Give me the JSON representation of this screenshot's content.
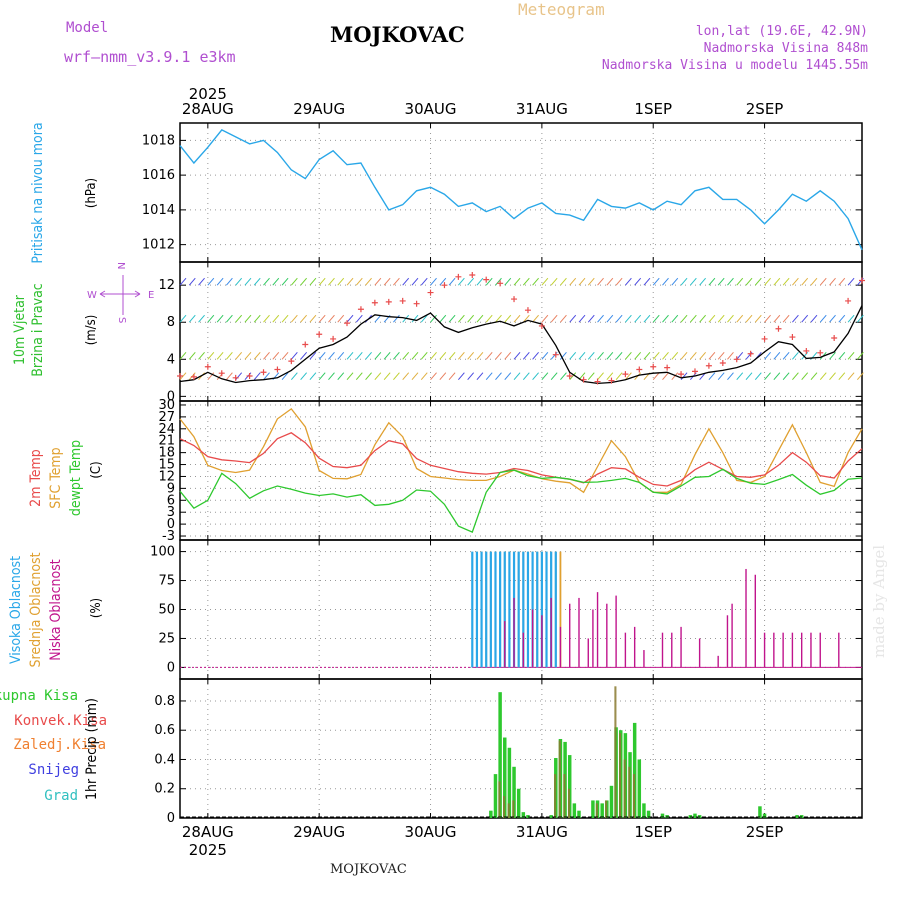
{
  "header": {
    "model_label": "Model",
    "model_name": "wrf—nmm_v3.9.1 e3km",
    "title": "MOJKOVAC",
    "meteogram": "Meteogram",
    "lonlat": "lon,lat (19.6E, 42.9N)",
    "altitude": "Nadmorska Visina 848m",
    "model_altitude": "Nadmorska Visina u modelu 1445.55m"
  },
  "footer": "MOJKOVAC",
  "credit": "made by Angel",
  "colors": {
    "pressure": "#2aa7e8",
    "temp2m": "#e84b4b",
    "sfc": "#e0a030",
    "dewpt": "#2ec82e",
    "high": "#2aa7e8",
    "mid": "#e0a030",
    "low": "#c0148c",
    "precip_total": "#2ec82e",
    "precip_conv": "#e84b4b",
    "precip_frozen": "#f08030",
    "snow": "#4040e0",
    "graupel": "#30c0c0",
    "wind_label": "#30c030",
    "compass": "#b04fd0"
  },
  "chart_data": [
    {
      "type": "line",
      "name": "pressure",
      "ylabel": "Pritisak na nivou mora",
      "unit": "(hPa)",
      "ylim": [
        1011,
        1019
      ],
      "yticks": [
        1012,
        1014,
        1016,
        1018
      ],
      "x_hours": [
        0,
        3,
        6,
        9,
        12,
        15,
        18,
        21,
        24,
        27,
        30,
        33,
        36,
        39,
        42,
        45,
        48,
        51,
        54,
        57,
        60,
        63,
        66,
        69,
        72,
        75,
        78,
        81,
        84,
        87,
        90,
        93,
        96,
        99,
        102,
        105,
        108,
        111,
        114,
        117,
        120,
        123,
        126,
        129,
        132,
        135,
        138,
        141,
        144,
        147
      ],
      "values": [
        1017.7,
        1016.7,
        1017.6,
        1018.6,
        1018.2,
        1017.8,
        1018.0,
        1017.3,
        1016.3,
        1015.8,
        1016.9,
        1017.4,
        1016.6,
        1016.7,
        1015.3,
        1014.0,
        1014.3,
        1015.1,
        1015.3,
        1014.9,
        1014.2,
        1014.4,
        1013.9,
        1014.2,
        1013.5,
        1014.1,
        1014.4,
        1013.8,
        1013.7,
        1013.4,
        1014.6,
        1014.2,
        1014.1,
        1014.4,
        1014.0,
        1014.5,
        1014.3,
        1015.1,
        1015.3,
        1014.6,
        1014.6,
        1014.0,
        1013.2,
        1014.0,
        1014.9,
        1014.5,
        1015.1,
        1014.5,
        1013.5,
        1011.7
      ]
    },
    {
      "type": "line",
      "name": "wind",
      "ylabel": "10m Vjetar Brzina i Pravac",
      "unit": "(m/s)",
      "ylim": [
        -0.5,
        14.5
      ],
      "yticks": [
        0,
        4,
        8,
        12
      ],
      "compass": {
        "n": "N",
        "s": "S",
        "w": "W",
        "e": "E"
      },
      "x_hours": [
        0,
        3,
        6,
        9,
        12,
        15,
        18,
        21,
        24,
        27,
        30,
        33,
        36,
        39,
        42,
        45,
        48,
        51,
        54,
        57,
        60,
        63,
        66,
        69,
        72,
        75,
        78,
        81,
        84,
        87,
        90,
        93,
        96,
        99,
        102,
        105,
        108,
        111,
        114,
        117,
        120,
        123,
        126,
        129,
        132,
        135,
        138,
        141,
        144,
        147
      ],
      "series": [
        {
          "name": "speed",
          "values": [
            1.6,
            1.8,
            2.6,
            1.9,
            1.5,
            1.7,
            1.8,
            2.0,
            2.8,
            4.0,
            5.2,
            5.6,
            6.4,
            7.8,
            8.8,
            8.6,
            8.5,
            8.2,
            9.0,
            7.5,
            6.9,
            7.4,
            7.8,
            8.1,
            7.6,
            8.2,
            7.8,
            5.5,
            2.6,
            1.6,
            1.4,
            1.5,
            1.8,
            2.3,
            2.5,
            2.6,
            2.0,
            2.2,
            2.6,
            2.8,
            3.1,
            3.6,
            4.8,
            5.9,
            5.6,
            4.1,
            4.2,
            4.8,
            6.8,
            9.8
          ]
        },
        {
          "name": "gust",
          "values": [
            2.2,
            2.1,
            3.2,
            2.5,
            2.0,
            2.2,
            2.6,
            2.9,
            3.8,
            5.6,
            6.7,
            6.2,
            7.9,
            9.4,
            10.1,
            10.2,
            10.3,
            10.0,
            11.2,
            12.0,
            12.9,
            13.1,
            12.6,
            12.2,
            10.5,
            9.3,
            7.6,
            4.5,
            2.2,
            1.8,
            1.6,
            1.7,
            2.4,
            2.9,
            3.2,
            3.1,
            2.4,
            2.7,
            3.3,
            3.6,
            4.0,
            4.6,
            6.2,
            7.3,
            6.4,
            4.9,
            4.7,
            6.3,
            10.3,
            12.5
          ]
        }
      ]
    },
    {
      "type": "line",
      "name": "temperature",
      "ylabels": [
        "2m Temp",
        "SFC Temp",
        "dewpt Temp"
      ],
      "unit": "(C)",
      "ylim": [
        -4,
        31
      ],
      "yticks": [
        -3,
        0,
        3,
        6,
        9,
        12,
        15,
        18,
        21,
        24,
        27,
        30
      ],
      "x_hours": [
        0,
        3,
        6,
        9,
        12,
        15,
        18,
        21,
        24,
        27,
        30,
        33,
        36,
        39,
        42,
        45,
        48,
        51,
        54,
        57,
        60,
        63,
        66,
        69,
        72,
        75,
        78,
        81,
        84,
        87,
        90,
        93,
        96,
        99,
        102,
        105,
        108,
        111,
        114,
        117,
        120,
        123,
        126,
        129,
        132,
        135,
        138,
        141,
        144,
        147
      ],
      "series": [
        {
          "name": "2m Temp",
          "values": [
            21.5,
            19.8,
            17.0,
            16.2,
            15.9,
            15.5,
            17.8,
            21.5,
            23.0,
            20.5,
            16.6,
            14.5,
            14.2,
            14.8,
            18.5,
            21.0,
            20.2,
            16.5,
            14.8,
            14.0,
            13.2,
            12.8,
            12.6,
            13.0,
            14.0,
            13.5,
            12.4,
            11.8,
            11.3,
            10.4,
            12.6,
            14.2,
            13.9,
            11.8,
            10.0,
            9.6,
            11.0,
            13.7,
            15.6,
            13.8,
            12.0,
            11.8,
            12.4,
            14.8,
            18.0,
            15.6,
            12.2,
            11.6,
            15.9,
            19.0
          ]
        },
        {
          "name": "SFC Temp",
          "values": [
            26.5,
            22.0,
            14.8,
            13.5,
            13.0,
            13.6,
            19.5,
            26.5,
            29.0,
            24.5,
            13.5,
            11.5,
            11.4,
            12.5,
            20.0,
            25.5,
            22.0,
            14.0,
            12.0,
            11.6,
            11.2,
            11.0,
            11.0,
            12.0,
            13.6,
            12.6,
            11.4,
            10.8,
            10.4,
            8.0,
            14.5,
            21.0,
            17.0,
            10.5,
            8.0,
            8.0,
            10.0,
            17.5,
            24.0,
            18.0,
            11.0,
            10.5,
            12.0,
            18.5,
            25.0,
            18.0,
            10.5,
            9.5,
            18.0,
            24.0
          ]
        },
        {
          "name": "dewpt Temp",
          "values": [
            8.3,
            4.0,
            6.0,
            12.8,
            10.2,
            6.5,
            8.4,
            9.6,
            8.8,
            7.8,
            7.2,
            7.6,
            6.8,
            7.4,
            4.7,
            5.0,
            6.0,
            8.6,
            8.3,
            5.0,
            -0.5,
            -2.0,
            8.0,
            13.0,
            13.6,
            12.2,
            11.5,
            11.8,
            11.3,
            10.5,
            10.6,
            11.0,
            11.5,
            10.5,
            8.0,
            7.6,
            9.6,
            11.8,
            12.0,
            13.8,
            11.5,
            10.3,
            10.0,
            11.2,
            12.5,
            9.8,
            7.5,
            8.5,
            11.3,
            11.6
          ]
        }
      ]
    },
    {
      "type": "bar",
      "name": "clouds",
      "ylabels": [
        "Visoka Oblacnost",
        "Srednja Oblacnost",
        "Niska Oblacnost"
      ],
      "unit": "(%)",
      "ylim": [
        -10,
        110
      ],
      "yticks": [
        0,
        25,
        50,
        75,
        100
      ],
      "high": {
        "x_hours": [
          63,
          64,
          65,
          66,
          67,
          68,
          69,
          70,
          71,
          72,
          73,
          74,
          75,
          76,
          77,
          78,
          79,
          80,
          81
        ],
        "values": [
          100,
          100,
          100,
          100,
          100,
          100,
          100,
          100,
          100,
          100,
          100,
          100,
          100,
          100,
          100,
          100,
          100,
          100,
          100
        ]
      },
      "mid": {
        "x_hours": [
          64,
          65,
          66,
          67,
          68,
          69,
          70,
          71,
          72,
          73,
          74,
          75,
          76,
          77,
          78,
          79,
          80,
          81,
          82
        ],
        "values": [
          100,
          100,
          100,
          100,
          100,
          100,
          100,
          100,
          100,
          100,
          100,
          100,
          100,
          100,
          100,
          100,
          100,
          100,
          100
        ]
      },
      "low": {
        "x_hours": [
          70,
          72,
          74,
          76,
          78,
          80,
          82,
          84,
          86,
          88,
          89,
          90,
          92,
          94,
          96,
          98,
          100,
          104,
          106,
          108,
          112,
          116,
          118,
          119,
          122,
          124,
          126,
          128,
          130,
          132,
          134,
          136,
          138,
          142
        ],
        "values": [
          40,
          60,
          30,
          50,
          45,
          60,
          35,
          55,
          60,
          25,
          50,
          65,
          55,
          62,
          30,
          35,
          15,
          30,
          30,
          35,
          25,
          10,
          45,
          55,
          85,
          80,
          30,
          30,
          30,
          30,
          30,
          30,
          30,
          30
        ]
      }
    },
    {
      "type": "bar",
      "name": "precip",
      "ylabel": "1hr Precip (mm)",
      "legend": [
        "Ukupna Kisa",
        "Konvek.Kisa",
        "Zaledj.Kisa",
        "Snijeg",
        "Grad"
      ],
      "ylim": [
        0,
        0.95
      ],
      "yticks": [
        0,
        0.2,
        0.4,
        0.6,
        0.8
      ],
      "yticklabels": [
        "0",
        "0.2",
        "0.4",
        "0.6",
        "0.8"
      ],
      "total": {
        "x_hours": [
          67,
          68,
          69,
          70,
          71,
          72,
          73,
          74,
          75,
          80,
          81,
          82,
          83,
          84,
          85,
          86,
          89,
          90,
          91,
          92,
          93,
          94,
          95,
          96,
          97,
          98,
          99,
          100,
          101,
          104,
          105,
          110,
          111,
          112,
          125,
          126,
          133,
          134
        ],
        "values": [
          0.05,
          0.3,
          0.86,
          0.55,
          0.48,
          0.35,
          0.2,
          0.04,
          0.02,
          0.02,
          0.41,
          0.54,
          0.52,
          0.43,
          0.1,
          0.05,
          0.12,
          0.12,
          0.1,
          0.12,
          0.22,
          0.62,
          0.6,
          0.58,
          0.45,
          0.65,
          0.4,
          0.1,
          0.05,
          0.03,
          0.02,
          0.02,
          0.03,
          0.02,
          0.08,
          0.03,
          0.02,
          0.02
        ]
      },
      "convective": {
        "x_hours": [
          69,
          70,
          71,
          72,
          81,
          82,
          83,
          84,
          90,
          92,
          94,
          95,
          96,
          97,
          98
        ],
        "values": [
          0.25,
          0.15,
          0.1,
          0.12,
          0.3,
          0.53,
          0.3,
          0.2,
          0.1,
          0.12,
          0.9,
          0.58,
          0.4,
          0.35,
          0.3
        ]
      }
    }
  ],
  "time_axis": {
    "year": "2025",
    "day_labels": [
      "28AUG",
      "29AUG",
      "30AUG",
      "31AUG",
      "1SEP",
      "2SEP"
    ],
    "day_hours": [
      6,
      30,
      54,
      78,
      102,
      126
    ],
    "range_hours": [
      0,
      147
    ]
  }
}
